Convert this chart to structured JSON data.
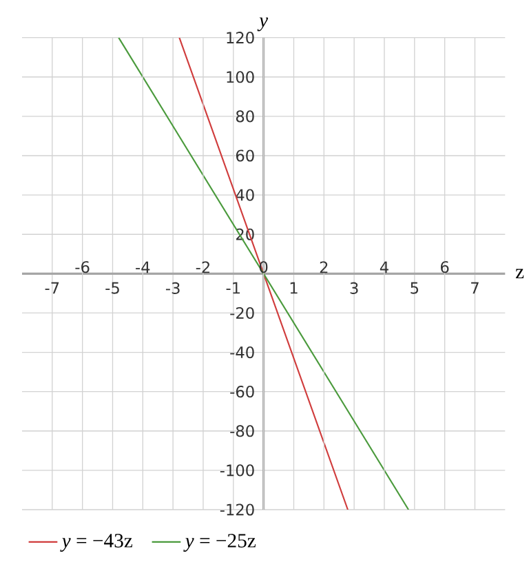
{
  "chart_data": {
    "type": "line",
    "xlabel": "z",
    "ylabel": "y",
    "xlim": [
      -8,
      8
    ],
    "ylim": [
      -120,
      120
    ],
    "xticks": [
      -7,
      -5,
      -3,
      -1,
      1,
      3,
      5,
      7
    ],
    "x2lim": [
      -8,
      8
    ],
    "x2ticks": [
      -6,
      -4,
      -2,
      0,
      2,
      4,
      6
    ],
    "yticks": [
      -120,
      -100,
      -80,
      -60,
      -40,
      -20,
      20,
      40,
      60,
      80,
      100,
      120
    ],
    "grid": true,
    "legend": "bottom",
    "series": [
      {
        "name": "*y* = −43z",
        "color": "#d03c3c",
        "x": [
          -2.79,
          2.79
        ],
        "values": [
          120,
          -120
        ]
      },
      {
        "name": "*y* = −25z",
        "color": "#4a9a3c",
        "x": [
          -4.8,
          4.8
        ],
        "values": [
          120,
          -120
        ]
      }
    ]
  }
}
